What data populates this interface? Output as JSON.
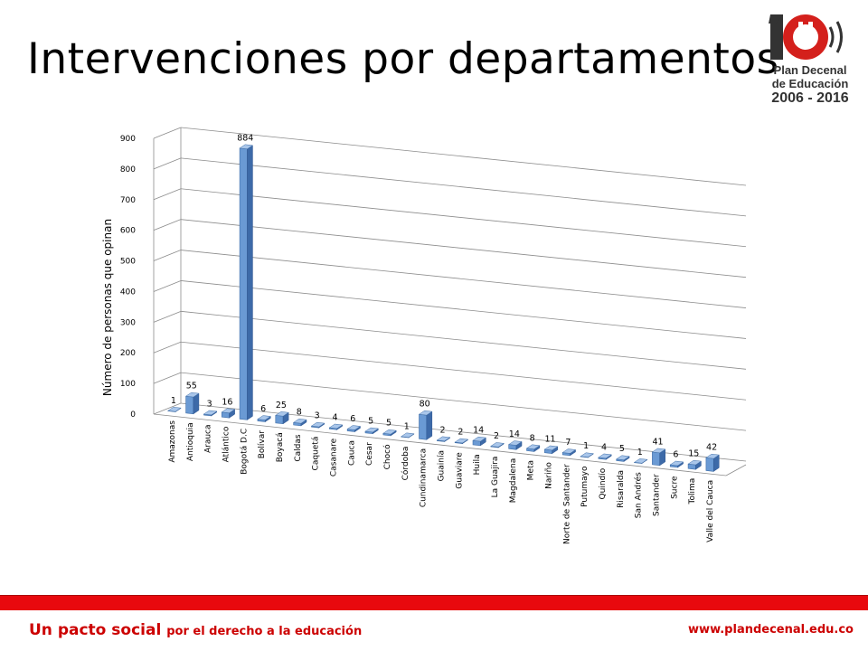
{
  "page": {
    "title": "Intervenciones por departamentos",
    "logo": {
      "big_number": "10",
      "line1": "Plan Decenal",
      "line2": "de Educación",
      "line3": "2006 - 2016"
    },
    "footer": {
      "slogan_main": "Un pacto social",
      "slogan_rest": "por el derecho a la educación",
      "url": "www.plandecenal.edu.co"
    },
    "colors": {
      "bar": "#4f81bd",
      "footer_red": "#e8090e",
      "footer_text": "#cc0000"
    }
  },
  "chart_data": {
    "type": "bar",
    "style": "3d-column",
    "ylabel": "Número de personas que opinan",
    "ylim": [
      0,
      900
    ],
    "yticks": [
      0,
      100,
      200,
      300,
      400,
      500,
      600,
      700,
      800,
      900
    ],
    "grid": true,
    "legend": "none",
    "categories": [
      "Amazonas",
      "Antioquia",
      "Arauca",
      "Atlántico",
      "Bogotá D.C",
      "Bolívar",
      "Boyacá",
      "Caldas",
      "Caquetá",
      "Casanare",
      "Cauca",
      "Cesar",
      "Chocó",
      "Córdoba",
      "Cundinamarca",
      "Guainía",
      "Guaviare",
      "Huila",
      "La Guajira",
      "Magdalena",
      "Meta",
      "Nariño",
      "Norte de Santander",
      "Putumayo",
      "Quindío",
      "Risaralda",
      "San Andrés",
      "Santander",
      "Sucre",
      "Tolima",
      "Valle del Cauca"
    ],
    "values": [
      1,
      55,
      3,
      16,
      884,
      6,
      25,
      8,
      3,
      4,
      6,
      5,
      5,
      1,
      80,
      2,
      2,
      14,
      2,
      14,
      8,
      11,
      7,
      1,
      4,
      5,
      1,
      41,
      6,
      15,
      42
    ]
  }
}
